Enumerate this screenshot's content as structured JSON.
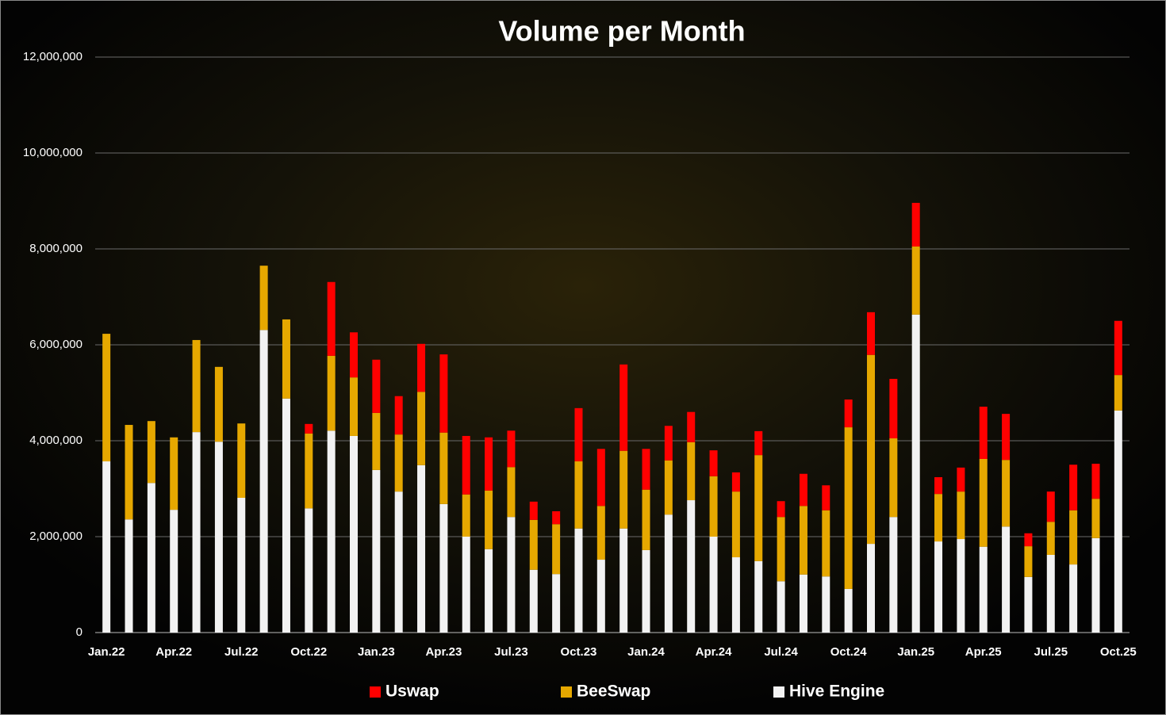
{
  "chart_data": {
    "type": "stacked-bar",
    "title": "Volume per Month",
    "categories": [
      "Jan.22",
      null,
      null,
      "Apr.22",
      null,
      null,
      "Jul.22",
      null,
      null,
      "Oct.22",
      null,
      null,
      "Jan.23",
      null,
      null,
      "Apr.23",
      null,
      null,
      "Jul.23",
      null,
      null,
      "Oct.23",
      null,
      null,
      "Jan.24",
      null,
      null,
      "Apr.24",
      null,
      null,
      "Jul.24",
      null,
      null,
      "Oct.24",
      null,
      null,
      "Jan.25",
      null,
      null,
      "Apr.25",
      null,
      null,
      "Jul.25",
      null,
      null,
      "Oct.25"
    ],
    "series": [
      {
        "name": "Uswap",
        "color": "#ff0000",
        "values": [
          0,
          0,
          0,
          0,
          0,
          0,
          0,
          0,
          0,
          200000,
          1540000,
          940000,
          1110000,
          800000,
          1000000,
          1630000,
          1220000,
          1110000,
          760000,
          380000,
          270000,
          1110000,
          1190000,
          1800000,
          850000,
          720000,
          630000,
          540000,
          400000,
          500000,
          330000,
          670000,
          520000,
          580000,
          890000,
          1240000,
          910000,
          350000,
          500000,
          1090000,
          960000,
          270000,
          630000,
          950000,
          730000,
          1130000
        ]
      },
      {
        "name": "BeeSwap",
        "color": "#e6a800",
        "values": [
          2660000,
          1970000,
          1290000,
          1510000,
          1920000,
          1560000,
          1550000,
          1340000,
          1650000,
          1560000,
          1560000,
          1220000,
          1190000,
          1190000,
          1530000,
          1490000,
          880000,
          1220000,
          1040000,
          1040000,
          1040000,
          1400000,
          1120000,
          1620000,
          1260000,
          1130000,
          1210000,
          1260000,
          1370000,
          2210000,
          1340000,
          1430000,
          1380000,
          3370000,
          3940000,
          1640000,
          1420000,
          990000,
          990000,
          1830000,
          1390000,
          640000,
          690000,
          1130000,
          820000,
          740000
        ]
      },
      {
        "name": "Hive Engine",
        "color": "#f2f2f2",
        "values": [
          3570000,
          2360000,
          3120000,
          2560000,
          4180000,
          3980000,
          2810000,
          6310000,
          4880000,
          2590000,
          4210000,
          4100000,
          3390000,
          2940000,
          3490000,
          2680000,
          2000000,
          1740000,
          2410000,
          1310000,
          1220000,
          2170000,
          1520000,
          2170000,
          1720000,
          2460000,
          2760000,
          2000000,
          1570000,
          1490000,
          1070000,
          1210000,
          1170000,
          910000,
          1850000,
          2410000,
          6630000,
          1900000,
          1950000,
          1790000,
          2210000,
          1160000,
          1620000,
          1420000,
          1970000,
          4630000
        ]
      }
    ],
    "ylim": [
      0,
      12000000
    ],
    "yticks": [
      0,
      {
        "value": 2000000,
        "label": "2,000,000"
      },
      {
        "value": 4000000,
        "label": "4,000,000"
      },
      {
        "value": 6000000,
        "label": "6,000,000"
      },
      {
        "value": 8000000,
        "label": "8,000,000"
      },
      {
        "value": 10000000,
        "label": "10,000,000"
      },
      {
        "value": 12000000,
        "label": "12,000,000"
      }
    ],
    "grid": true,
    "legend": "bottom"
  }
}
